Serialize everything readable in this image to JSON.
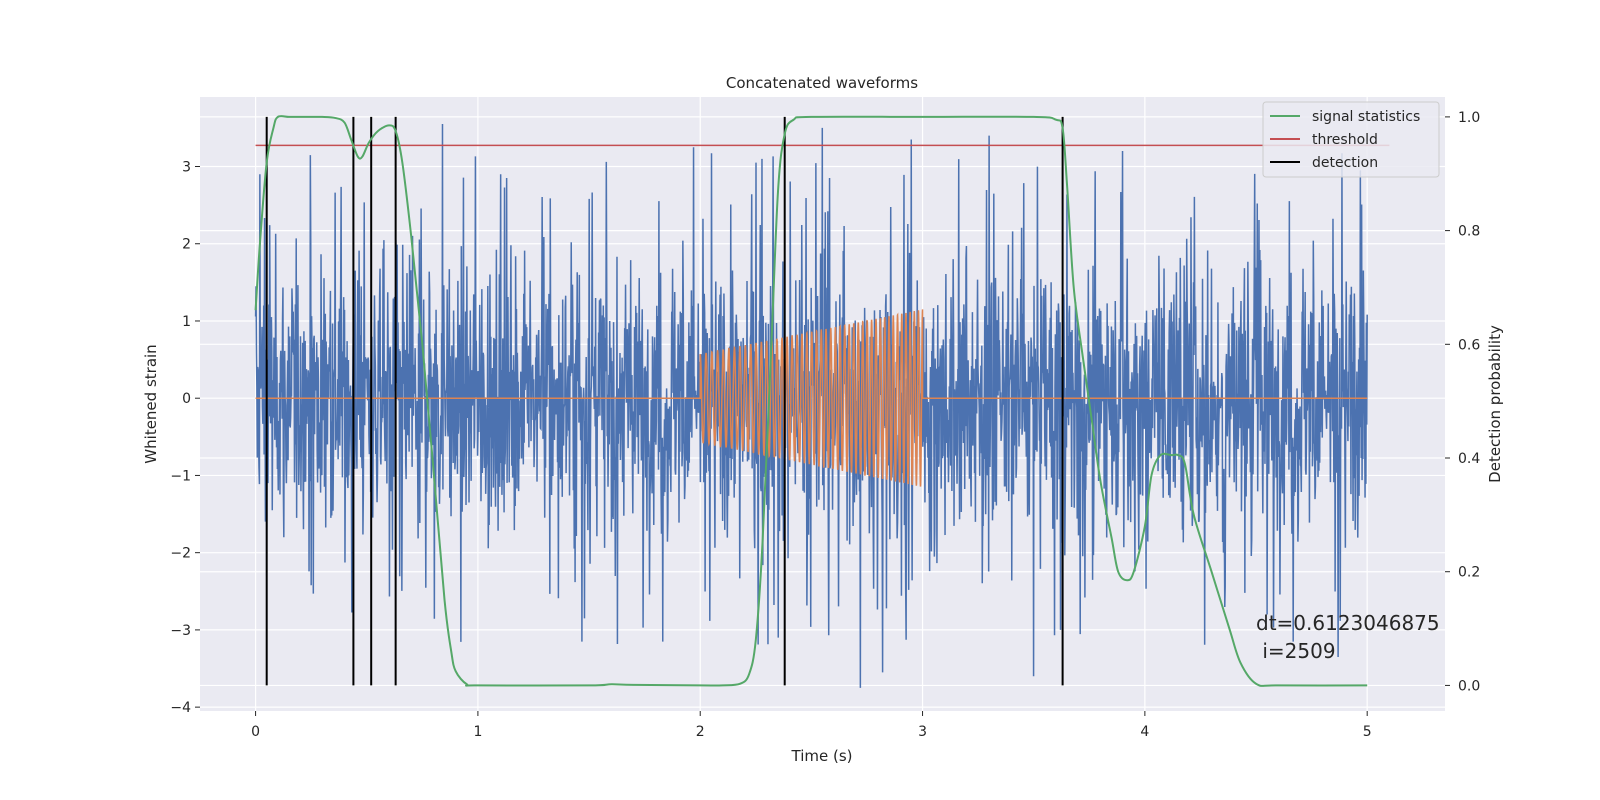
{
  "chart_data": {
    "type": "line",
    "title": "Concatenated waveforms",
    "xlabel": "Time (s)",
    "ylabel": "Whitened strain",
    "y2label": "Detection probability",
    "xlim": [
      -0.25,
      5.35
    ],
    "ylim": [
      -4.05,
      3.9
    ],
    "y2lim": [
      -0.045,
      1.035
    ],
    "x_ticks": [
      "0",
      "1",
      "2",
      "3",
      "4",
      "5"
    ],
    "x_tick_values": [
      0,
      1,
      2,
      3,
      4,
      5
    ],
    "y_ticks": [
      "−4",
      "−3",
      "−2",
      "−1",
      "0",
      "1",
      "2",
      "3"
    ],
    "y_tick_values": [
      -4,
      -3,
      -2,
      -1,
      0,
      1,
      2,
      3
    ],
    "y2_ticks": [
      "0.0",
      "0.2",
      "0.4",
      "0.6",
      "0.8",
      "1.0"
    ],
    "y2_tick_values": [
      0.0,
      0.2,
      0.4,
      0.6,
      0.8,
      1.0
    ],
    "grid": true,
    "legend_placement": "top-right",
    "background": "#eaeaf2",
    "series": [
      {
        "name": "",
        "kind": "whitened_noise",
        "axis": "left",
        "color": "#4c72b0",
        "x_range": [
          0,
          5
        ],
        "core_amplitude": 0.9,
        "peak_envelope": 3.5,
        "peaks": [
          [
            0.02,
            2.9
          ],
          [
            0.84,
            3.55
          ],
          [
            1.97,
            3.25
          ],
          [
            2.25,
            3.05
          ],
          [
            2.55,
            3.5
          ],
          [
            2.95,
            3.35
          ],
          [
            3.3,
            3.4
          ],
          [
            3.9,
            3.2
          ],
          [
            4.97,
            2.95
          ]
        ],
        "troughs": [
          [
            0.05,
            -2.3
          ],
          [
            1.48,
            -2.85
          ],
          [
            2.35,
            -3.1
          ],
          [
            2.72,
            -3.75
          ],
          [
            2.82,
            -3.55
          ],
          [
            3.5,
            -3.6
          ],
          [
            3.62,
            -3.0
          ],
          [
            4.55,
            -2.8
          ],
          [
            4.87,
            -3.35
          ]
        ]
      },
      {
        "name": "",
        "kind": "chirp",
        "axis": "left",
        "color": "#dd8452",
        "x_range": [
          0,
          5
        ],
        "chirp_start": 2.0,
        "chirp_end": 3.0,
        "amplitude_start": 0.57,
        "amplitude_end": 1.15,
        "cycles": 46
      },
      {
        "name": "signal statistics",
        "axis": "right",
        "color": "#55a868",
        "x": [
          0.0,
          0.02,
          0.05,
          0.08,
          0.1,
          0.15,
          0.2,
          0.3,
          0.36,
          0.4,
          0.43,
          0.46,
          0.48,
          0.51,
          0.55,
          0.6,
          0.63,
          0.66,
          0.7,
          0.75,
          0.8,
          0.85,
          0.88,
          0.9,
          0.95,
          1.0,
          1.5,
          1.6,
          1.7,
          2.0,
          2.1,
          2.18,
          2.22,
          2.25,
          2.28,
          2.32,
          2.35,
          2.38,
          2.42,
          2.5,
          3.0,
          3.5,
          3.6,
          3.63,
          3.65,
          3.68,
          3.72,
          3.76,
          3.8,
          3.85,
          3.88,
          3.92,
          3.95,
          4.0,
          4.03,
          4.07,
          4.12,
          4.15,
          4.18,
          4.22,
          4.3,
          4.38,
          4.43,
          4.5,
          4.6,
          5.0
        ],
        "values": [
          0.66,
          0.78,
          0.92,
          0.98,
          1.0,
          1.0,
          1.0,
          1.0,
          0.998,
          0.99,
          0.96,
          0.93,
          0.93,
          0.955,
          0.975,
          0.985,
          0.975,
          0.92,
          0.79,
          0.6,
          0.38,
          0.15,
          0.06,
          0.025,
          0.002,
          0.0,
          0.0,
          0.002,
          0.001,
          0.0,
          0.0,
          0.003,
          0.02,
          0.08,
          0.25,
          0.6,
          0.87,
          0.97,
          0.995,
          1.0,
          1.0,
          1.0,
          0.995,
          0.98,
          0.88,
          0.7,
          0.58,
          0.47,
          0.36,
          0.26,
          0.2,
          0.185,
          0.2,
          0.28,
          0.37,
          0.405,
          0.405,
          0.405,
          0.39,
          0.3,
          0.2,
          0.1,
          0.04,
          0.003,
          0.0,
          0.0
        ]
      },
      {
        "name": "threshold",
        "axis": "right",
        "color": "#c44e52",
        "x": [
          0,
          5.1
        ],
        "values": [
          0.95,
          0.95
        ]
      },
      {
        "name": "detection",
        "axis": "right",
        "color": "#000000",
        "x": [
          0.05,
          0.44,
          0.52,
          0.63,
          2.38,
          3.63
        ],
        "values": [
          1.0,
          1.0,
          1.0,
          1.0,
          1.0,
          1.0
        ]
      }
    ],
    "legend": [
      {
        "label": "signal statistics",
        "color": "#55a868"
      },
      {
        "label": "threshold",
        "color": "#c44e52"
      },
      {
        "label": "detection",
        "color": "#000000"
      }
    ],
    "annotation": {
      "line1": "dt=0.6123046875",
      "line2": " i=2509"
    }
  }
}
